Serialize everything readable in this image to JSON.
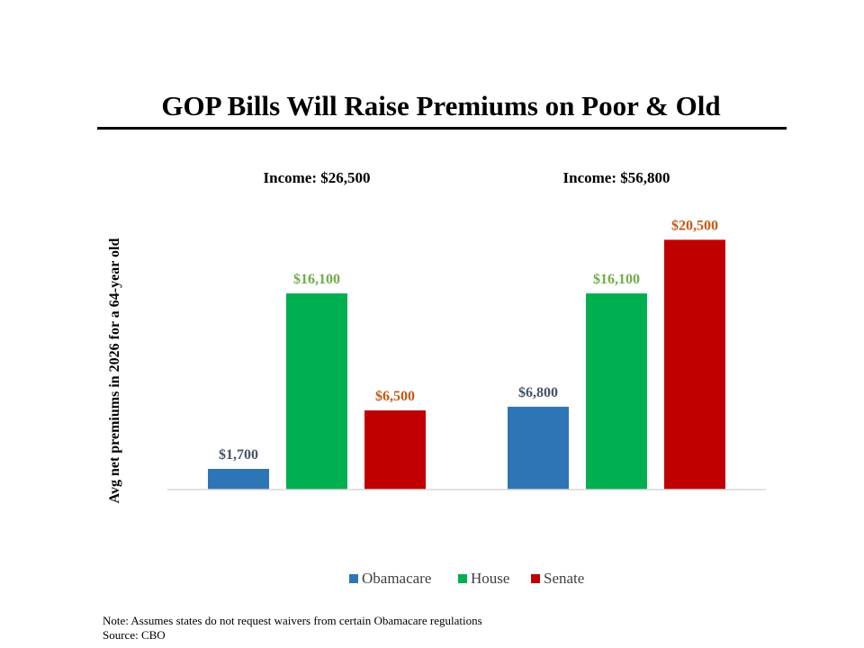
{
  "title": "GOP Bills Will Raise Premiums on Poor & Old",
  "note": "Note: Assumes states do not request waivers from certain Obamacare regulations",
  "source": "Source: CBO",
  "chart_data": {
    "type": "bar",
    "categories": [
      "Income: $26,500",
      "Income: $56,800"
    ],
    "series": [
      {
        "name": "Obamacare",
        "values": [
          1700,
          6800
        ],
        "labels": [
          "$1,700",
          "$6,800"
        ],
        "color": "#2e75b6",
        "label_color": "#44546a"
      },
      {
        "name": "House",
        "values": [
          16100,
          16100
        ],
        "labels": [
          "$16,100",
          "$16,100"
        ],
        "color": "#00b050",
        "label_color": "#70ad47"
      },
      {
        "name": "Senate",
        "values": [
          6500,
          20500
        ],
        "labels": [
          "$6,500",
          "$20,500"
        ],
        "color": "#c00000",
        "label_color": "#c55a11"
      }
    ],
    "ylabel": "Avg net premiums in 2026 for a 64-year old",
    "xlabel": "",
    "ylim": [
      0,
      22000
    ],
    "grid": false,
    "legend": "bottom"
  }
}
